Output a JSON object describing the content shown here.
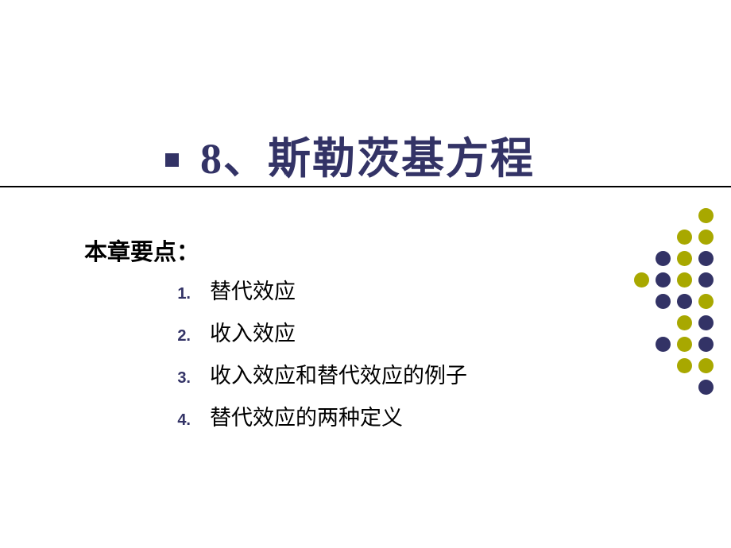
{
  "title": "8、斯勒茨基方程",
  "subtitle": "本章要点：",
  "items": [
    {
      "num": "1.",
      "text": "替代效应"
    },
    {
      "num": "2.",
      "text": "收入效应"
    },
    {
      "num": "3.",
      "text": "收入效应和替代效应的例子"
    },
    {
      "num": "4.",
      "text": "替代效应的两种定义"
    }
  ],
  "colors": {
    "purple": "#333366",
    "olive": "#a8a800",
    "divider": "#000000"
  },
  "dots": {
    "pattern": [
      [
        1
      ],
      [
        1,
        1
      ],
      [
        0,
        1,
        0
      ],
      [
        1,
        0,
        1,
        0
      ],
      [
        0,
        0,
        1
      ],
      [
        1,
        0
      ],
      [
        0,
        1,
        0
      ],
      [
        1,
        1
      ],
      [
        0
      ]
    ],
    "colors": {
      "0": "#333366",
      "1": "#a8a800"
    }
  }
}
